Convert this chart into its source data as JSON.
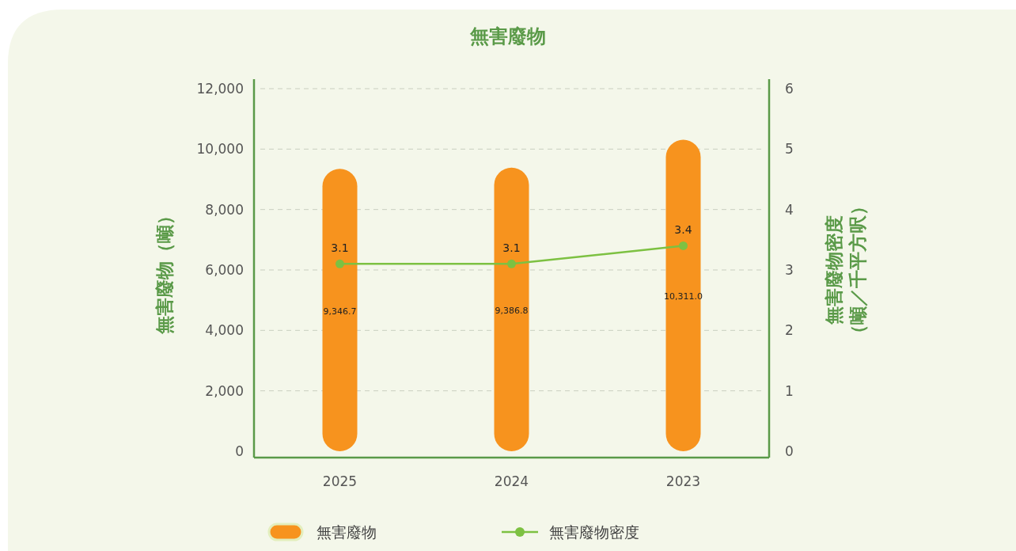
{
  "chart_data": {
    "type": "bar",
    "title": "無害廢物",
    "ylabel": "無害廢物（噸）",
    "y2label": "無害廢物密度（噸／千平方呎）",
    "categories": [
      "2025",
      "2024",
      "2023"
    ],
    "series": [
      {
        "name": "無害廢物",
        "color": "#f7931e",
        "values": [
          9346.7,
          9386.8,
          10311.0
        ],
        "value_labels": [
          "9,346.7",
          "9,386.8",
          "10,311.0"
        ]
      },
      {
        "name": "無害廢物密度",
        "type": "line",
        "axis": "y2",
        "color": "#7dc142",
        "marker": "circle",
        "values": [
          3.1,
          3.1,
          3.4
        ],
        "value_labels": [
          "3.1",
          "3.1",
          "3.4"
        ]
      }
    ],
    "ylim": [
      0,
      12000
    ],
    "yticks": [
      {
        "value": 0,
        "label": "0"
      },
      {
        "value": 2000,
        "label": "2,000"
      },
      {
        "value": 4000,
        "label": "4,000"
      },
      {
        "value": 6000,
        "label": "6,000"
      },
      {
        "value": 8000,
        "label": "8,000"
      },
      {
        "value": 10000,
        "label": "10,000"
      },
      {
        "value": 12000,
        "label": "12,000"
      }
    ],
    "y2lim": [
      0,
      6
    ],
    "y2ticks": [
      0,
      1,
      2,
      3,
      4,
      5,
      6
    ],
    "grid": "y",
    "legend": "bottom"
  }
}
